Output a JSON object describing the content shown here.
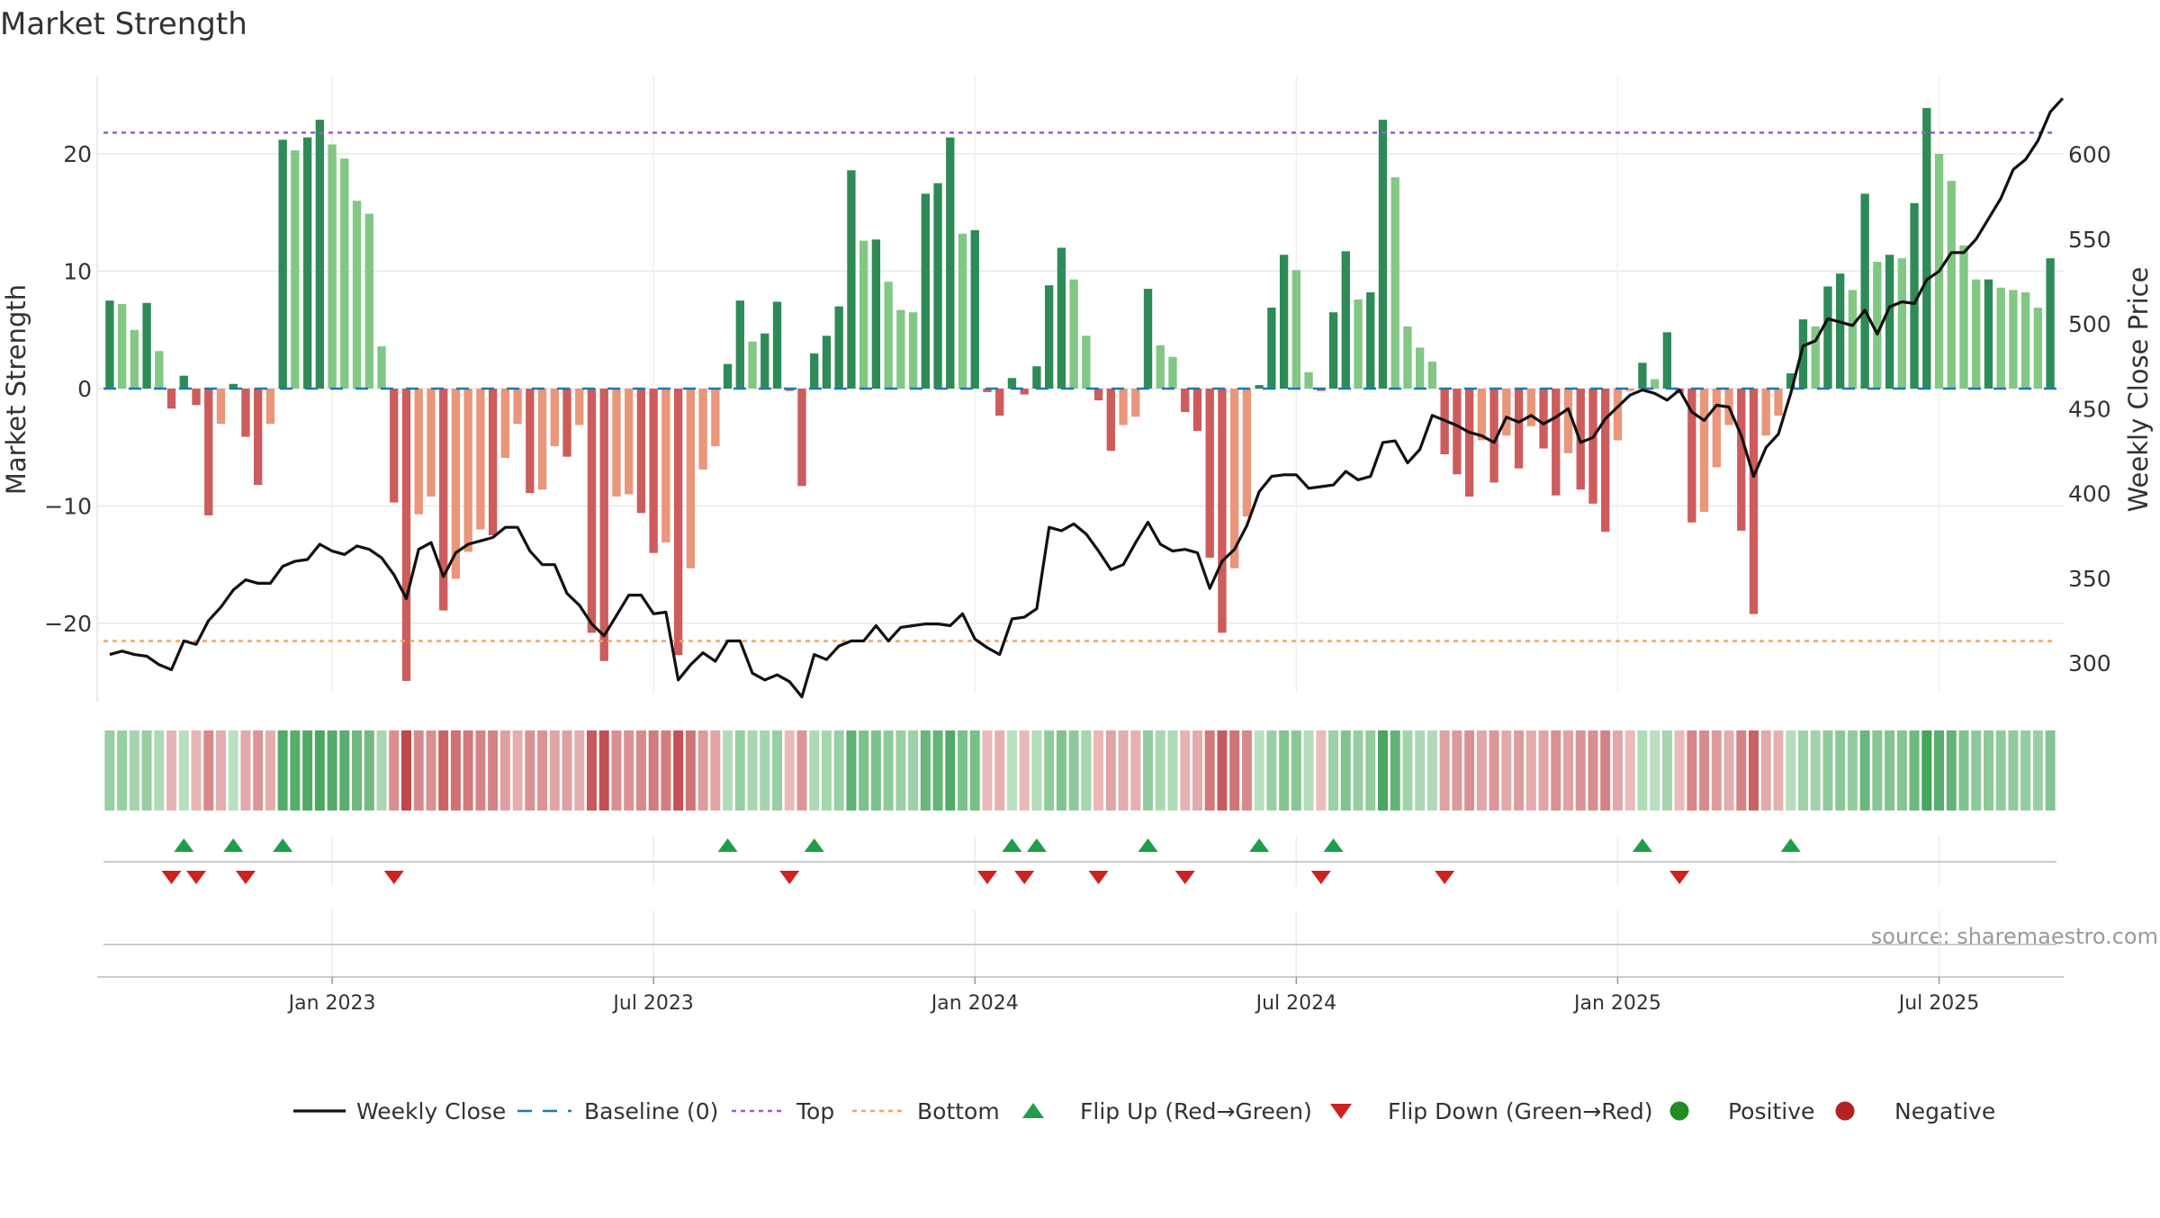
{
  "title": "Market Strength",
  "source": "source: sharemaestro.com",
  "colors": {
    "strong_pos": "#2e8b57",
    "weak_pos": "#83c785",
    "strong_neg": "#cd5c5c",
    "weak_neg": "#e9967a",
    "line": "#111111",
    "baseline": "#1f77b4",
    "top": "#9b59d9",
    "bottom": "#f4a460",
    "flip_up": "#1f9e4a",
    "flip_down": "#cc2222",
    "positive": "#228b22",
    "negative": "#b22222"
  },
  "legend": [
    {
      "label": "Weekly Close",
      "symbol": "line"
    },
    {
      "label": "Baseline (0)",
      "symbol": "dash"
    },
    {
      "label": "Top",
      "symbol": "dot-purple"
    },
    {
      "label": "Bottom",
      "symbol": "dot-orange"
    },
    {
      "label": "Flip Up (Red→Green)",
      "symbol": "tri-up"
    },
    {
      "label": "Flip Down (Green→Red)",
      "symbol": "tri-down"
    },
    {
      "label": "Positive",
      "symbol": "circle-green"
    },
    {
      "label": "Negative",
      "symbol": "circle-red"
    }
  ],
  "chart_data": {
    "type": "bar",
    "title": "Market Strength",
    "ylabel": "Market Strength",
    "y2label": "Weekly Close Price",
    "ylim": [
      -27,
      27
    ],
    "y2lim": [
      285,
      655
    ],
    "yticks": [
      20,
      10,
      0,
      -10,
      -20
    ],
    "y2ticks": [
      600,
      550,
      500,
      450,
      400,
      350,
      300
    ],
    "xticks": [
      "Jan 2023",
      "Jul 2023",
      "Jan 2024",
      "Jul 2024",
      "Jan 2025",
      "Jul 2025"
    ],
    "xtick_week_index": [
      18.5,
      44.5,
      70.5,
      96.5,
      122.5,
      148.5
    ],
    "top_level": 21.8,
    "bottom_level": -21.5,
    "grid": true,
    "strength": [
      7.5,
      7.2,
      5.0,
      7.3,
      3.2,
      -1.7,
      1.1,
      -1.4,
      -10.8,
      -3.0,
      0.4,
      -4.1,
      -8.2,
      -3.0,
      21.2,
      20.3,
      21.4,
      22.9,
      20.8,
      19.6,
      16.0,
      14.9,
      3.6,
      -9.7,
      -24.9,
      -10.7,
      -9.2,
      -18.9,
      -16.2,
      -13.9,
      -12.0,
      -12.5,
      -5.9,
      -3.0,
      -8.9,
      -8.6,
      -4.9,
      -5.8,
      -3.1,
      -20.8,
      -23.2,
      -9.2,
      -9.0,
      -10.6,
      -14.0,
      -13.1,
      -22.7,
      -15.3,
      -6.9,
      -4.9,
      2.1,
      7.5,
      4.0,
      4.7,
      7.4,
      -0.2,
      -8.3,
      3.0,
      4.5,
      7.0,
      18.6,
      12.6,
      12.7,
      9.1,
      6.7,
      6.5,
      16.6,
      17.5,
      21.4,
      13.2,
      13.5,
      -0.3,
      -2.3,
      0.9,
      -0.5,
      1.9,
      8.8,
      12.0,
      9.3,
      4.5,
      -1.0,
      -5.3,
      -3.1,
      -2.4,
      8.5,
      3.7,
      2.7,
      -2.0,
      -3.6,
      -14.4,
      -20.8,
      -15.3,
      -10.9,
      0.3,
      6.9,
      11.4,
      10.1,
      1.4,
      -0.2,
      6.5,
      11.7,
      7.6,
      8.2,
      22.9,
      18.0,
      5.3,
      3.5,
      2.3,
      -5.6,
      -7.3,
      -9.2,
      -4.4,
      -8.0,
      -4.0,
      -6.8,
      -3.2,
      -5.1,
      -9.1,
      -5.5,
      -8.6,
      -9.8,
      -12.2,
      -4.4,
      -0.2,
      2.2,
      0.8,
      4.8,
      -0.4,
      -11.4,
      -10.5,
      -6.7,
      -3.1,
      -12.1,
      -19.2,
      -4.0,
      -2.3,
      1.3,
      5.9,
      5.3,
      8.7,
      9.8,
      8.4,
      16.6,
      10.8,
      11.4,
      11.1,
      15.8,
      23.9,
      20.0,
      17.7,
      12.2,
      9.3,
      9.3,
      8.6,
      8.4,
      8.2,
      6.9,
      11.1
    ],
    "close": [
      305,
      307,
      305,
      304,
      299,
      296,
      313,
      311,
      325,
      333,
      343,
      349,
      347,
      347,
      357,
      360,
      361,
      370,
      366,
      364,
      369,
      367,
      362,
      352,
      338,
      367,
      371,
      351,
      365,
      370,
      372,
      374,
      380,
      380,
      366,
      358,
      358,
      341,
      334,
      323,
      316,
      328,
      340,
      340,
      329,
      330,
      290,
      299,
      306,
      301,
      313,
      313,
      294,
      290,
      293,
      289,
      280,
      305,
      302,
      310,
      313,
      313,
      322,
      313,
      321,
      322,
      323,
      323,
      322,
      329,
      314,
      309,
      305,
      326,
      327,
      332,
      380,
      378,
      382,
      376,
      366,
      355,
      358,
      371,
      383,
      370,
      366,
      367,
      365,
      344,
      360,
      367,
      381,
      401,
      410,
      411,
      411,
      403,
      404,
      405,
      413,
      408,
      410,
      430,
      431,
      418,
      426,
      446,
      443,
      440,
      436,
      434,
      430,
      445,
      442,
      446,
      441,
      445,
      450,
      430,
      433,
      444,
      451,
      458,
      461,
      459,
      455,
      461,
      448,
      443,
      452,
      451,
      434,
      410,
      427,
      435,
      459,
      487,
      490,
      503,
      501,
      499,
      508,
      494,
      510,
      513,
      512,
      526,
      531,
      542,
      542,
      550,
      562,
      574,
      591,
      597,
      608,
      625,
      633
    ]
  }
}
